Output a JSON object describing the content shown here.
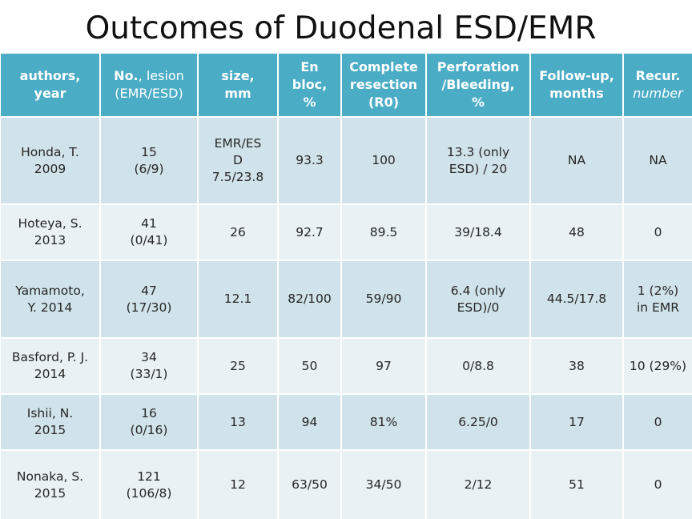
{
  "title": "Outcomes of Duodenal ESD/EMR",
  "header": {
    "authors": [
      "authors,",
      "year"
    ],
    "lesion": [
      "No.",
      ", lesion",
      "(EMR/ESD)"
    ],
    "size": [
      "size,",
      "mm"
    ],
    "enbloc": [
      "En",
      "bloc,",
      "%"
    ],
    "resection": [
      "Complete",
      "resection",
      "(R0)"
    ],
    "perforation": [
      "Perforation",
      "/Bleeding,",
      "%"
    ],
    "followup": [
      "Follow-up,",
      "months"
    ],
    "recur": [
      "Recur.",
      "number"
    ]
  },
  "rows": [
    {
      "author": [
        "Honda, T.",
        "2009"
      ],
      "lesion": [
        "15",
        "(6/9)"
      ],
      "size": [
        "EMR/ES",
        "D",
        "7.5/23.8"
      ],
      "enbloc": [
        "93.3"
      ],
      "r0": [
        "100"
      ],
      "perf": [
        "13.3 (only",
        "ESD) / 20"
      ],
      "followup": [
        "NA"
      ],
      "recur": [
        "NA"
      ]
    },
    {
      "author": [
        "Hoteya, S.",
        "2013"
      ],
      "lesion": [
        "41",
        "(0/41)"
      ],
      "size": [
        "26"
      ],
      "enbloc": [
        "92.7"
      ],
      "r0": [
        "89.5"
      ],
      "perf": [
        "39/18.4"
      ],
      "followup": [
        "48"
      ],
      "recur": [
        "0"
      ]
    },
    {
      "author": [
        "Yamamoto,",
        "Y. 2014"
      ],
      "lesion": [
        "47",
        "(17/30)"
      ],
      "size": [
        "12.1"
      ],
      "enbloc": [
        "82/100"
      ],
      "r0": [
        "59/90"
      ],
      "perf": [
        "6.4 (only",
        "ESD)/0"
      ],
      "followup": [
        "44.5/17.8"
      ],
      "recur": [
        "1 (2%)",
        "in EMR"
      ]
    },
    {
      "author": [
        "Basford, P. J.",
        "2014"
      ],
      "lesion": [
        "34",
        "(33/1)"
      ],
      "size": [
        "25"
      ],
      "enbloc": [
        "50"
      ],
      "r0": [
        "97"
      ],
      "perf": [
        "0/8.8"
      ],
      "followup": [
        "38"
      ],
      "recur": [
        "10 (29%)"
      ]
    },
    {
      "author": [
        "Ishii, N.",
        "2015"
      ],
      "lesion": [
        "16",
        "(0/16)"
      ],
      "size": [
        "13"
      ],
      "enbloc": [
        "94"
      ],
      "r0": [
        "81%"
      ],
      "perf": [
        "6.25/0"
      ],
      "followup": [
        "17"
      ],
      "recur": [
        "0"
      ]
    },
    {
      "author": [
        "Nonaka, S.",
        "2015"
      ],
      "lesion": [
        "121",
        "(106/8)"
      ],
      "size": [
        "12"
      ],
      "enbloc": [
        "63/50"
      ],
      "r0": [
        "34/50"
      ],
      "perf": [
        "2/12"
      ],
      "followup": [
        "51"
      ],
      "recur": [
        "0"
      ]
    }
  ],
  "colors": {
    "header_bg": "#4bacc6",
    "row_dark": "#d0e3ea",
    "row_light": "#e9f1f5"
  }
}
